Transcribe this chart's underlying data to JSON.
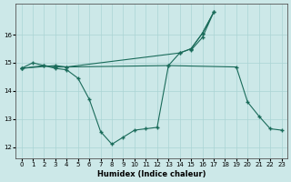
{
  "xlabel": "Humidex (Indice chaleur)",
  "bg_color": "#cce8e8",
  "line_color": "#1a6b5a",
  "grid_color": "#aad4d4",
  "xlim": [
    -0.5,
    23.5
  ],
  "ylim": [
    11.6,
    17.1
  ],
  "yticks": [
    12,
    13,
    14,
    15,
    16
  ],
  "xticks": [
    0,
    1,
    2,
    3,
    4,
    5,
    6,
    7,
    8,
    9,
    10,
    11,
    12,
    13,
    14,
    15,
    16,
    17,
    18,
    19,
    20,
    21,
    22,
    23
  ],
  "series1": {
    "x": [
      0,
      3,
      4,
      14,
      15,
      16,
      17,
      16,
      15
    ],
    "y": [
      14.8,
      14.9,
      14.85,
      15.35,
      15.5,
      16.05,
      16.8,
      15.9,
      15.45
    ]
  },
  "series2": {
    "x": [
      0,
      1,
      2,
      3,
      4,
      13,
      19,
      20,
      21,
      22,
      23
    ],
    "y": [
      14.8,
      15.0,
      14.9,
      14.85,
      14.85,
      14.9,
      14.85,
      13.6,
      13.1,
      12.65,
      12.6
    ]
  },
  "series3": {
    "x": [
      0,
      2,
      3,
      4,
      5,
      6,
      7,
      8,
      9,
      10,
      11,
      12,
      13,
      14,
      15,
      16,
      17
    ],
    "y": [
      14.8,
      14.9,
      14.8,
      14.75,
      14.45,
      13.7,
      12.55,
      12.1,
      12.35,
      12.6,
      12.65,
      12.7,
      14.9,
      15.35,
      15.5,
      16.05,
      16.8
    ]
  }
}
